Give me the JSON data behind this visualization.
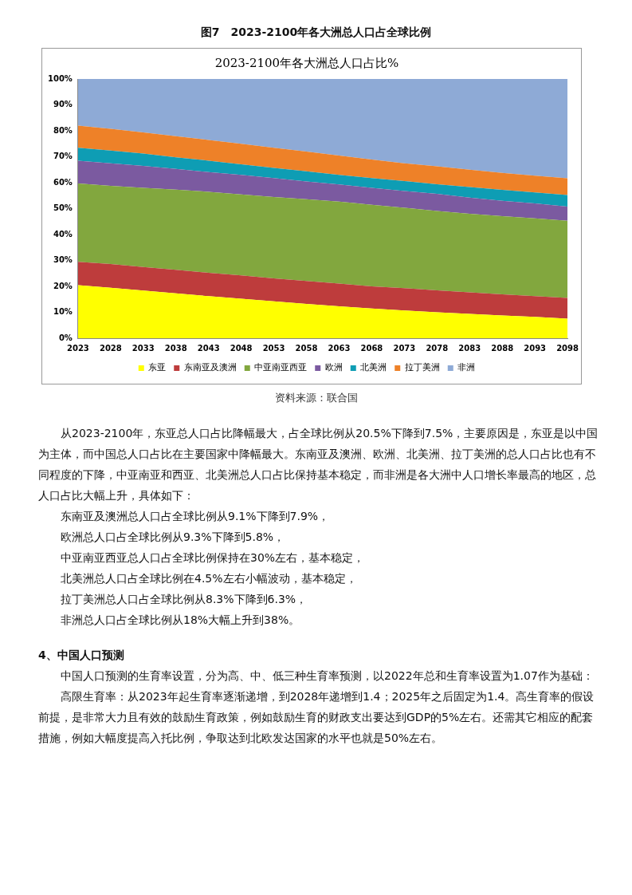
{
  "chart_data": {
    "type": "area",
    "stacked": true,
    "title": "图7　2023-2100年各大洲总人口占全球比例",
    "subtitle": "2023-2100年各大洲总人口占比%",
    "categories": [
      "2023",
      "2028",
      "2033",
      "2038",
      "2043",
      "2048",
      "2053",
      "2058",
      "2063",
      "2068",
      "2073",
      "2078",
      "2083",
      "2088",
      "2093",
      "2098"
    ],
    "series": [
      {
        "name": "东亚",
        "color": "#ffff00",
        "values": [
          20.5,
          19.5,
          18.4,
          17.3,
          16.2,
          15.2,
          14.2,
          13.2,
          12.3,
          11.5,
          10.7,
          10.0,
          9.4,
          8.8,
          8.2,
          7.5
        ]
      },
      {
        "name": "东南亚及澳洲",
        "color": "#be3c3c",
        "values": [
          9.0,
          9.1,
          9.1,
          9.1,
          9.0,
          9.0,
          8.9,
          8.9,
          8.8,
          8.5,
          8.6,
          8.5,
          8.3,
          8.1,
          8.0,
          8.0
        ]
      },
      {
        "name": "中亚南亚西亚",
        "color": "#82a73e",
        "values": [
          30.2,
          30.2,
          30.5,
          30.9,
          31.3,
          31.3,
          31.4,
          31.5,
          31.6,
          31.5,
          31.0,
          30.6,
          30.3,
          30.2,
          30.0,
          29.8
        ]
      },
      {
        "name": "欧洲",
        "color": "#7b5aa0",
        "values": [
          8.8,
          8.7,
          8.5,
          8.0,
          7.6,
          7.5,
          7.3,
          6.9,
          6.6,
          6.5,
          6.5,
          6.6,
          6.2,
          5.9,
          5.8,
          5.5
        ]
      },
      {
        "name": "北美洲",
        "color": "#0e9db4",
        "values": [
          5.0,
          4.9,
          4.7,
          4.5,
          4.4,
          4.1,
          3.9,
          3.9,
          3.7,
          3.8,
          3.8,
          3.7,
          4.1,
          4.2,
          4.2,
          4.4
        ]
      },
      {
        "name": "拉丁美洲",
        "color": "#ee8128",
        "values": [
          8.5,
          8.4,
          8.2,
          8.1,
          8.0,
          7.9,
          7.8,
          7.6,
          7.5,
          7.1,
          6.9,
          6.9,
          6.7,
          6.6,
          6.5,
          6.5
        ]
      },
      {
        "name": "非洲",
        "color": "#8eaad6",
        "values": [
          18.0,
          19.2,
          20.6,
          22.1,
          23.5,
          25.0,
          26.5,
          28.0,
          29.5,
          31.1,
          32.5,
          33.7,
          35.0,
          36.2,
          37.3,
          38.3
        ]
      }
    ],
    "ylim": [
      0,
      100
    ],
    "yticks": [
      {
        "value": 0,
        "label": "0%"
      },
      {
        "value": 10,
        "label": "10%"
      },
      {
        "value": 20,
        "label": "20%"
      },
      {
        "value": 30,
        "label": "30%"
      },
      {
        "value": 40,
        "label": "40%"
      },
      {
        "value": 50,
        "label": "50%"
      },
      {
        "value": 60,
        "label": "60%"
      },
      {
        "value": 70,
        "label": "70%"
      },
      {
        "value": 80,
        "label": "80%"
      },
      {
        "value": 90,
        "label": "90%"
      },
      {
        "value": 100,
        "label": "100%"
      }
    ],
    "legend": "bottom",
    "annotations": [
      "资料来源：联合国",
      "从2023-2100年，东亚总人口占比降幅最大，占全球比例从20.5%下降到7.5%，主要原因是，东亚是以中国为主体，而中国总人口占比在主要国家中降幅最大。东南亚及澳洲、欧洲、北美洲、拉丁美洲的总人口占比也有不同程度的下降，中亚南亚和西亚、北美洲总人口占比保持基本稳定，而非洲是各大洲中人口增长率最高的地区，总人口占比大幅上升，具体如下：",
      "东南亚及澳洲总人口占全球比例从9.1%下降到7.9%，",
      "欧洲总人口占全球比例从9.3%下降到5.8%，",
      "中亚南亚西亚总人口占全球比例保持在30%左右，基本稳定，",
      "北美洲总人口占全球比例在4.5%左右小幅波动，基本稳定，",
      "拉丁美洲总人口占全球比例从8.3%下降到6.3%，",
      "非洲总人口占全球比例从18%大幅上升到38%。",
      "4、中国人口预测",
      "中国人口预测的生育率设置，分为高、中、低三种生育率预测，以2022年总和生育率设置为1.07作为基础：",
      "高限生育率：从2023年起生育率逐渐递增，到2028年递增到1.4；2025年之后固定为1.4。高生育率的假设前提，是非常大力且有效的鼓励生育政策，例如鼓励生育的财政支出要达到GDP的5%左右。还需其它相应的配套措施，例如大幅度提高入托比例，争取达到北欧发达国家的水平也就是50%左右。"
    ]
  }
}
